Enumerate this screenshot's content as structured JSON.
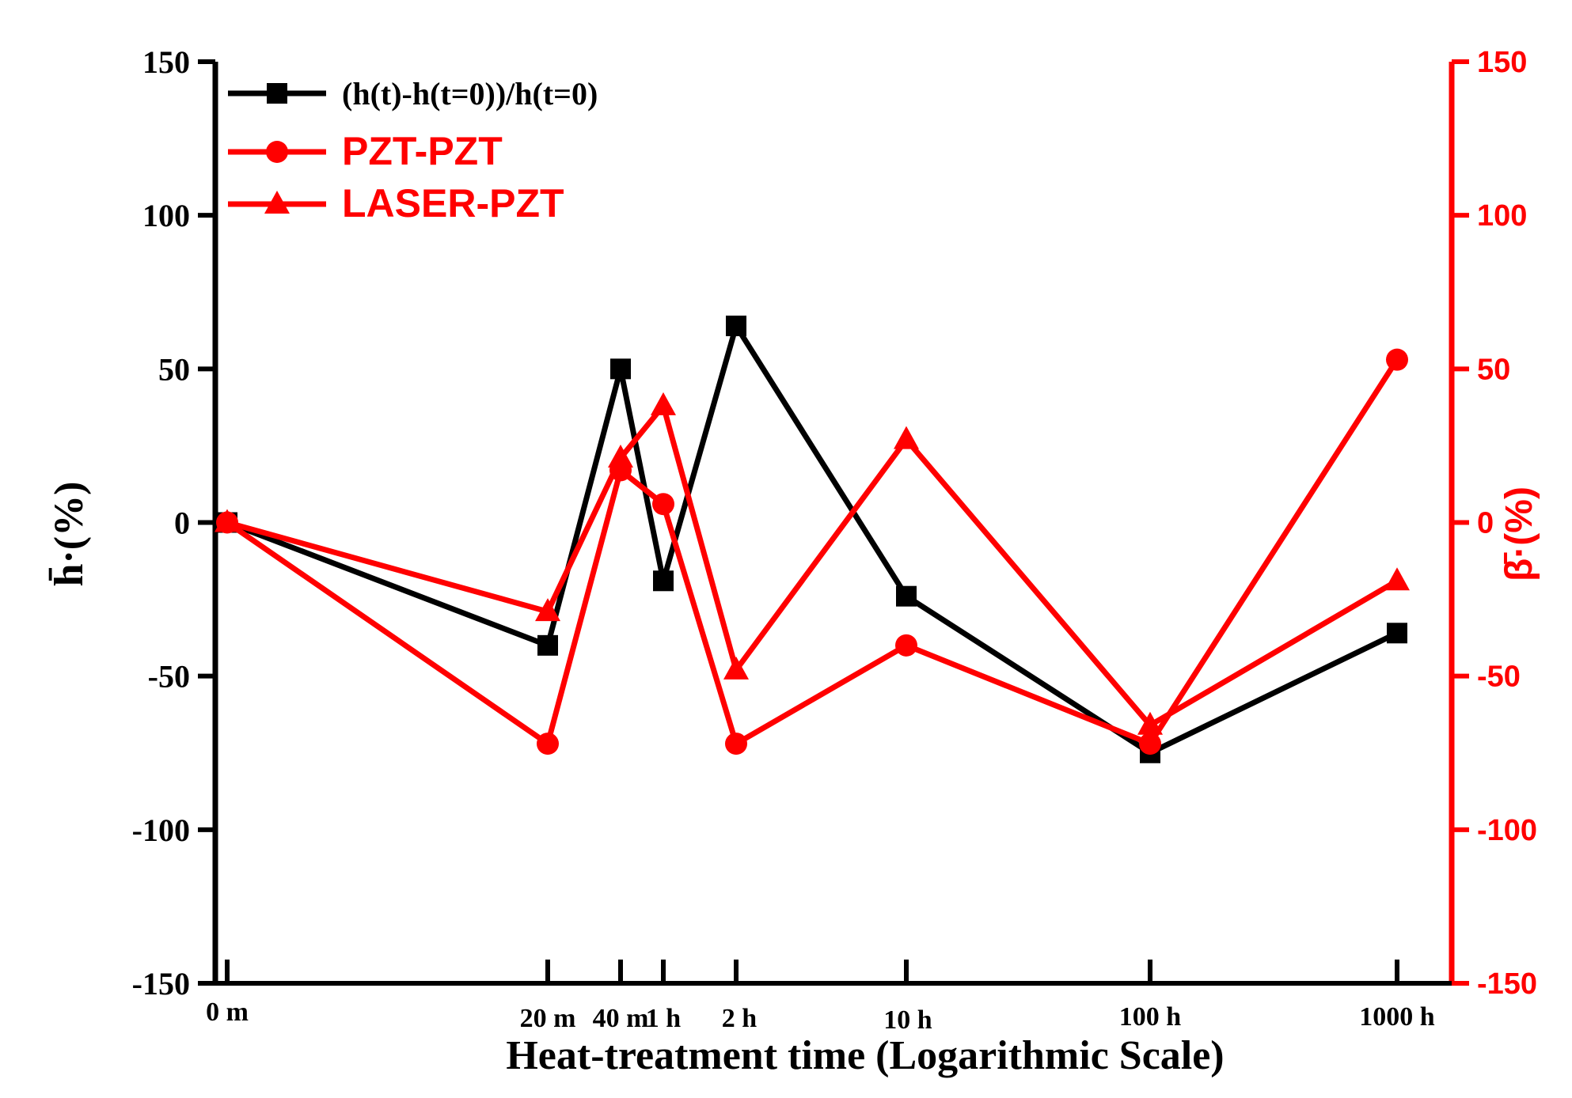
{
  "colors": {
    "axis_left": "#000000",
    "axis_right": "#ff0000",
    "series_black": "#000000",
    "series_red": "#ff0000"
  },
  "chart_data": {
    "type": "line",
    "x_scale": "log",
    "x_axis_label": "Heat-treatment time (Logarithmic Scale)",
    "categories": [
      "0 m",
      "20 m",
      "40 m",
      "1 h",
      "2 h",
      "10 h",
      "100 h",
      "1000 h"
    ],
    "y_left": {
      "label": "h̄·(%)",
      "ylim": [
        -150,
        150
      ],
      "ticks": [
        "150",
        "100",
        "50",
        "0",
        "-50",
        "-100",
        "-150"
      ],
      "tick_values": [
        150,
        100,
        50,
        0,
        -50,
        -100,
        -150
      ]
    },
    "y_right": {
      "label": "β̄·(%)",
      "ylim": [
        -150,
        150
      ],
      "ticks": [
        "150",
        "100",
        "50",
        "0",
        "-50",
        "-100",
        "-150"
      ],
      "tick_values": [
        150,
        100,
        50,
        0,
        -50,
        -100,
        -150
      ]
    },
    "legend_position": "top-left",
    "series": [
      {
        "name": "(h(t)-h(t=0))/h(t=0)",
        "axis": "left",
        "color": "#000000",
        "marker": "square",
        "values": [
          0,
          -40,
          50,
          -19,
          64,
          -24,
          -75,
          -36
        ]
      },
      {
        "name": "PZT-PZT",
        "axis": "right",
        "color": "#ff0000",
        "marker": "circle",
        "values": [
          0,
          -72,
          17,
          6,
          -72,
          -40,
          -72,
          53
        ]
      },
      {
        "name": "LASER-PZT",
        "axis": "right",
        "color": "#ff0000",
        "marker": "triangle",
        "values": [
          0,
          -29,
          21,
          38,
          -48,
          27,
          -66,
          -19
        ]
      }
    ]
  }
}
